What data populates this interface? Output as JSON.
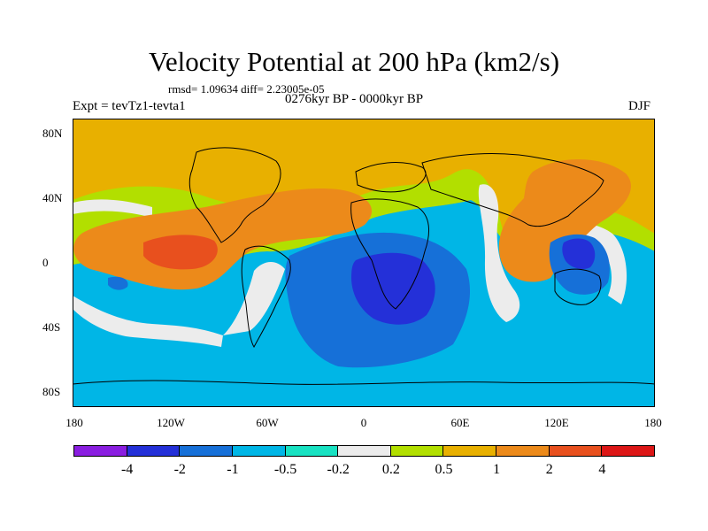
{
  "title": "Velocity Potential at 200 hPa (km2/s)",
  "stats": "rmsd= 1.09634 diff= 2.23005e-05",
  "period": "0276kyr BP - 0000kyr BP",
  "experiment": "Expt = tevTz1-tevta1",
  "season": "DJF",
  "x_ticks": [
    "180",
    "120W",
    "60W",
    "0",
    "60E",
    "120E",
    "180"
  ],
  "y_ticks": [
    "80N",
    "40N",
    "0",
    "40S",
    "80S"
  ],
  "colorbar": {
    "colors": [
      "#8a1ee0",
      "#2430d8",
      "#1670d8",
      "#00b6e6",
      "#18e2c2",
      "#ececec",
      "#b2df00",
      "#e8b000",
      "#ec8a1a",
      "#e8501e",
      "#dc1616"
    ],
    "labels": [
      "-4",
      "-2",
      "-1",
      "-0.5",
      "-0.2",
      "0.2",
      "0.5",
      "1",
      "2",
      "4"
    ]
  },
  "palette": {
    "orange_dark": "#ec8a1a",
    "red_orange": "#e8501e",
    "gold": "#e8b000",
    "yellow_green": "#b2df00",
    "white": "#ececec",
    "aqua": "#18e2c2",
    "cyan": "#00b6e6",
    "blue_mid": "#1670d8",
    "blue_deep": "#2430d8"
  }
}
